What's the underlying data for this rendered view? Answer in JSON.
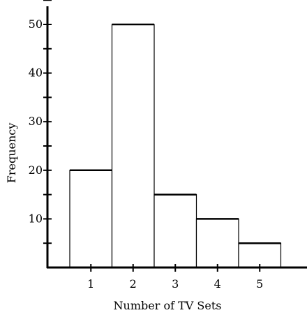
{
  "chart_data": {
    "type": "bar",
    "categories": [
      "1",
      "2",
      "3",
      "4",
      "5"
    ],
    "values": [
      20,
      50,
      15,
      10,
      5
    ],
    "xlabel": "Number of TV Sets",
    "ylabel": "Frequency",
    "ylim": [
      0,
      55
    ],
    "yticks_labeled": [
      10,
      20,
      30,
      40,
      50
    ],
    "yticks_minor": [
      5,
      15,
      25,
      35,
      45,
      55
    ],
    "grid": false,
    "legend": "none"
  }
}
